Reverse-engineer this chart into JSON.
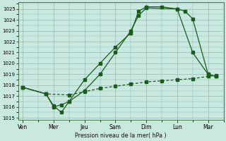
{
  "title": "",
  "xlabel": "Pression niveau de la mer( hPa )",
  "ylabel": "",
  "background_color": "#c8e8e0",
  "grid_color": "#9ababa",
  "line_color": "#1a5c1a",
  "xtick_labels": [
    "Ven",
    "Mer",
    "Jeu",
    "Sam",
    "Dim",
    "Lun",
    "Mar"
  ],
  "x_positions": [
    0,
    2,
    4,
    6,
    8,
    10,
    12
  ],
  "ylim": [
    1015,
    1025.5
  ],
  "yticks": [
    1015,
    1016,
    1017,
    1018,
    1019,
    1020,
    1021,
    1022,
    1023,
    1024,
    1025
  ],
  "line1": {
    "x": [
      0,
      1.5,
      2.0,
      2.5,
      3.0,
      4.0,
      5.0,
      6.0,
      7.0,
      7.5,
      8.0,
      10.0,
      11.0,
      12.0,
      12.5
    ],
    "y": [
      1017.8,
      1017.2,
      1016.1,
      1015.5,
      1016.5,
      1017.5,
      1019.0,
      1021.0,
      1023.0,
      1024.4,
      1025.1,
      1025.0,
      1021.0,
      1019.0,
      1018.8
    ]
  },
  "line2": {
    "x": [
      0,
      1.5,
      2.0,
      2.5,
      3.0,
      4.0,
      5.0,
      6.0,
      7.0,
      7.5,
      8.0,
      9.0,
      10.0,
      10.5,
      11.0,
      12.0,
      12.5
    ],
    "y": [
      1017.8,
      1017.2,
      1016.0,
      1016.2,
      1016.5,
      1018.5,
      1020.0,
      1021.5,
      1022.8,
      1024.8,
      1025.2,
      1025.2,
      1025.0,
      1024.8,
      1024.1,
      1019.0,
      1018.8
    ]
  },
  "line3": {
    "x": [
      0,
      1.5,
      3.0,
      4.0,
      5.0,
      6.0,
      7.0,
      8.0,
      9.0,
      10.0,
      11.0,
      12.0,
      12.5
    ],
    "y": [
      1017.8,
      1017.2,
      1017.1,
      1017.4,
      1017.7,
      1017.9,
      1018.1,
      1018.3,
      1018.4,
      1018.5,
      1018.6,
      1018.8,
      1018.9
    ]
  },
  "figsize": [
    3.2,
    2.0
  ],
  "dpi": 100
}
